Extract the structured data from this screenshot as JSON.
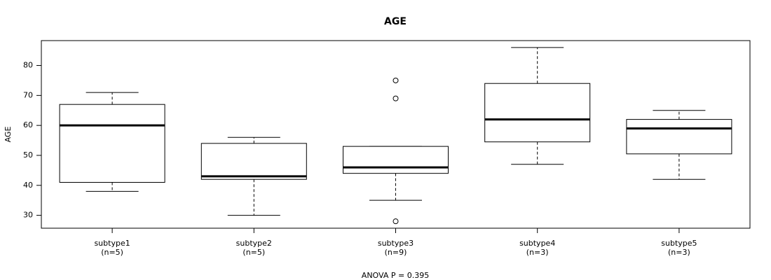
{
  "chart_data": {
    "type": "boxplot",
    "title": "AGE",
    "ylabel": "AGE",
    "xlabel": "",
    "ylim": [
      25.7,
      88.3
    ],
    "yticks": [
      30,
      40,
      50,
      60,
      70,
      80
    ],
    "ytick_labels": [
      "30",
      "40",
      "50",
      "60",
      "70",
      "80"
    ],
    "caption": "ANOVA P = 0.395",
    "categories": [
      {
        "label": "subtype1",
        "count": "(n=5)",
        "whisker_low": 38,
        "q1": 41,
        "median": 60,
        "q3": 67,
        "whisker_high": 71,
        "outliers": []
      },
      {
        "label": "subtype2",
        "count": "(n=5)",
        "whisker_low": 30,
        "q1": 42,
        "median": 43,
        "q3": 54,
        "whisker_high": 56,
        "outliers": []
      },
      {
        "label": "subtype3",
        "count": "(n=9)",
        "whisker_low": 35,
        "q1": 44,
        "median": 46,
        "q3": 53,
        "whisker_high": 53,
        "outliers": [
          28,
          69,
          75
        ]
      },
      {
        "label": "subtype4",
        "count": "(n=3)",
        "whisker_low": 47,
        "q1": 54.5,
        "median": 62,
        "q3": 74,
        "whisker_high": 86,
        "outliers": []
      },
      {
        "label": "subtype5",
        "count": "(n=3)",
        "whisker_low": 42,
        "q1": 50.5,
        "median": 59,
        "q3": 62,
        "whisker_high": 65,
        "outliers": []
      }
    ]
  }
}
